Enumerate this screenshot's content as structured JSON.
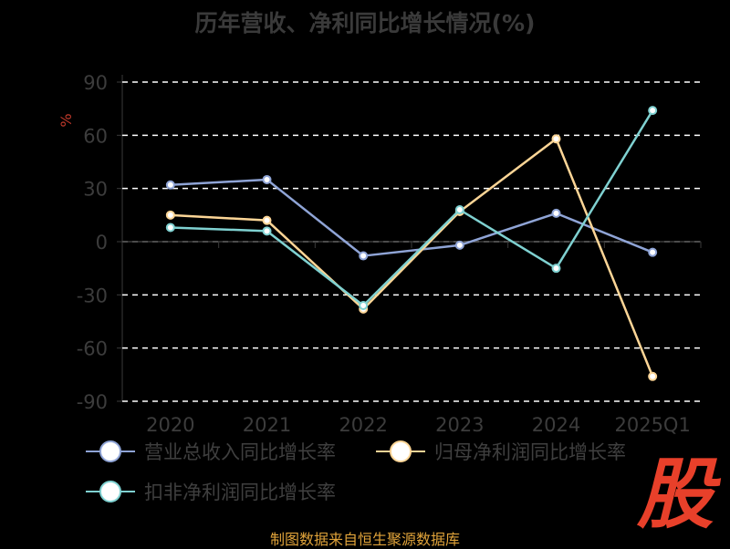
{
  "chart_data": {
    "type": "line",
    "title": "历年营收、净利同比增长情况(%)",
    "ylabel": "%",
    "categories": [
      "2020",
      "2021",
      "2022",
      "2023",
      "2024",
      "2025Q1"
    ],
    "y_ticks": [
      "90",
      "60",
      "30",
      "0",
      "-30",
      "-60",
      "-90"
    ],
    "ylim": [
      -90,
      90
    ],
    "grid": true,
    "legend_position": "bottom",
    "series": [
      {
        "name": "营业总收入同比增长率",
        "color": "#8fa4d6",
        "values": [
          32,
          35,
          -8,
          -2,
          16,
          -6
        ]
      },
      {
        "name": "归母净利润同比增长率",
        "color": "#fcd596",
        "values": [
          15,
          12,
          -38,
          17,
          58,
          -76
        ]
      },
      {
        "name": "扣非净利润同比增长率",
        "color": "#7fd1d1",
        "values": [
          8,
          6,
          -36,
          18,
          -15,
          74
        ]
      }
    ]
  },
  "footer": {
    "source": "制图数据来自恒生聚源数据库",
    "brand_mark": "股"
  }
}
